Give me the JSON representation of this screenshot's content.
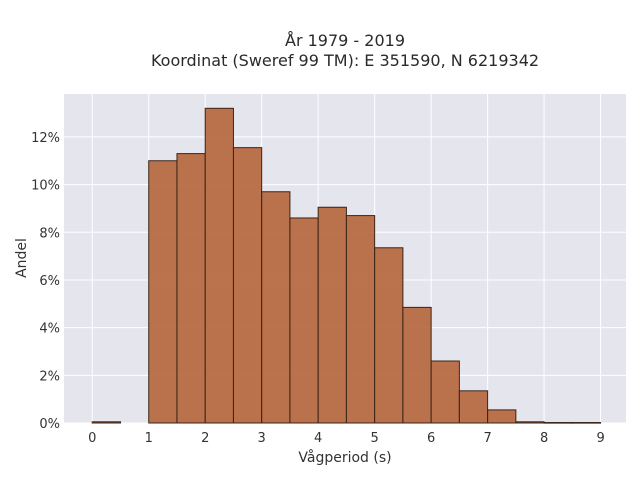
{
  "chart_data": {
    "type": "bar",
    "title": "År 1979 - 2019",
    "subtitle": "Koordinat (Sweref 99 TM): E 351590, N 6219342",
    "xlabel": "Vågperiod (s)",
    "ylabel": "Andel",
    "xlim": [
      -0.5,
      9.45
    ],
    "ylim": [
      0,
      13.8
    ],
    "x_ticks": [
      0,
      1,
      2,
      3,
      4,
      5,
      6,
      7,
      8,
      9
    ],
    "y_ticks": [
      0,
      2,
      4,
      6,
      8,
      10,
      12
    ],
    "y_tick_suffix": "%",
    "bin_width": 0.5,
    "bins": [
      {
        "x0": 0.0,
        "value": 0.05
      },
      {
        "x0": 1.0,
        "value": 11.0
      },
      {
        "x0": 1.5,
        "value": 11.3
      },
      {
        "x0": 2.0,
        "value": 13.2
      },
      {
        "x0": 2.5,
        "value": 11.55
      },
      {
        "x0": 3.0,
        "value": 9.7
      },
      {
        "x0": 3.5,
        "value": 8.6
      },
      {
        "x0": 4.0,
        "value": 9.05
      },
      {
        "x0": 4.5,
        "value": 8.7
      },
      {
        "x0": 5.0,
        "value": 7.35
      },
      {
        "x0": 5.5,
        "value": 4.85
      },
      {
        "x0": 6.0,
        "value": 2.6
      },
      {
        "x0": 6.5,
        "value": 1.35
      },
      {
        "x0": 7.0,
        "value": 0.55
      },
      {
        "x0": 7.5,
        "value": 0.05
      },
      {
        "x0": 8.0,
        "value": 0.02
      },
      {
        "x0": 8.5,
        "value": 0.02
      }
    ],
    "grid": true,
    "legend": false,
    "colors": {
      "bar": "#b5653b",
      "bar_edge": "#3b2416",
      "plot_bg": "#e5e5ee",
      "grid": "#ffffff"
    }
  }
}
